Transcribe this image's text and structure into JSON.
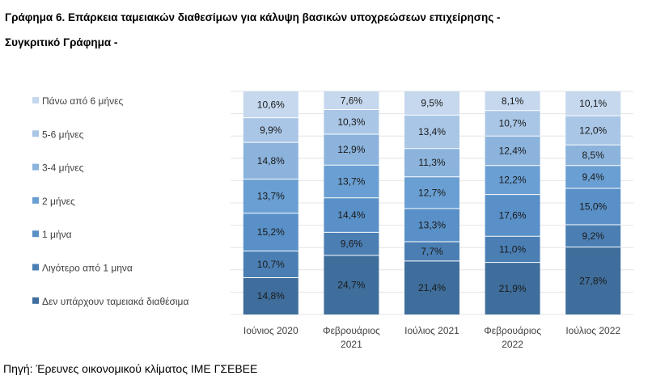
{
  "title": {
    "line1": "Γράφημα 6. Επάρκεια ταμειακών διαθεσίμων για κάλυψη βασικών υποχρεώσεων επιχείρησης -",
    "line2": "Συγκριτικό Γράφημα -"
  },
  "source": "Πηγή: Έρευνες οικονομικού κλίματος ΙΜΕ ΓΣΕΒΕΕ",
  "chart_data": {
    "type": "bar",
    "stacked": true,
    "percent_stacked": true,
    "categories": [
      [
        "Ιούνιος 2020"
      ],
      [
        "Φεβρουάριος",
        "2021"
      ],
      [
        "Ιούλιος 2021"
      ],
      [
        "Φεβρουάριος",
        "2022"
      ],
      [
        "Ιούλιος 2022"
      ]
    ],
    "series": [
      {
        "name": "Δεν υπάρχουν ταμειακά διαθέσιμα",
        "color": "#3f6e9c",
        "values": [
          14.8,
          24.7,
          21.4,
          21.9,
          27.8
        ],
        "labels": [
          "14,8%",
          "24,7%",
          "21,4%",
          "21,9%",
          "27,8%"
        ]
      },
      {
        "name": "Λιγότερο από 1 μηνα",
        "color": "#4b7fb4",
        "values": [
          10.7,
          9.6,
          7.7,
          11.0,
          9.2
        ],
        "labels": [
          "10,7%",
          "9,6%",
          "7,7%",
          "11,0%",
          "9,2%"
        ]
      },
      {
        "name": "1 μήνα",
        "color": "#5990c7",
        "values": [
          15.2,
          14.4,
          13.3,
          17.6,
          15.0
        ],
        "labels": [
          "15,2%",
          "14,4%",
          "13,3%",
          "17,6%",
          "15,0%"
        ]
      },
      {
        "name": "2 μήνες",
        "color": "#6a9fd3",
        "values": [
          13.7,
          13.7,
          12.7,
          12.2,
          9.4
        ],
        "labels": [
          "13,7%",
          "13,7%",
          "12,7%",
          "12,2%",
          "9,4%"
        ]
      },
      {
        "name": "3-4 μήνες",
        "color": "#8bb3dc",
        "values": [
          14.8,
          12.9,
          11.3,
          12.4,
          8.5
        ],
        "labels": [
          "14,8%",
          "12,9%",
          "11,3%",
          "12,4%",
          "8,5%"
        ]
      },
      {
        "name": "5-6 μήνες",
        "color": "#a9c6e6",
        "values": [
          9.9,
          10.3,
          13.4,
          10.7,
          12.0
        ],
        "labels": [
          "9,9%",
          "10,3%",
          "13,4%",
          "10,7%",
          "12,0%"
        ]
      },
      {
        "name": "Πάνω από 6 μήνες",
        "color": "#c5d8ee",
        "values": [
          10.6,
          7.6,
          9.5,
          8.1,
          10.1
        ],
        "labels": [
          "10,6%",
          "7,6%",
          "9,5%",
          "8,1%",
          "10,1%"
        ]
      }
    ],
    "legend_position": "left",
    "grid": true,
    "ylim": [
      0,
      100
    ]
  }
}
